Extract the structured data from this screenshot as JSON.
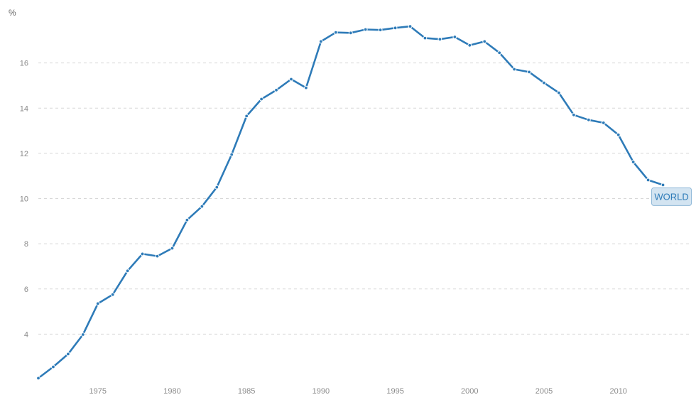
{
  "chart_data": {
    "type": "line",
    "unit": "%",
    "x": [
      1971,
      1972,
      1973,
      1974,
      1975,
      1976,
      1977,
      1978,
      1979,
      1980,
      1981,
      1982,
      1983,
      1984,
      1985,
      1986,
      1987,
      1988,
      1989,
      1990,
      1991,
      1992,
      1993,
      1994,
      1995,
      1996,
      1997,
      1998,
      1999,
      2000,
      2001,
      2002,
      2003,
      2004,
      2005,
      2006,
      2007,
      2008,
      2009,
      2010,
      2011,
      2012,
      2013
    ],
    "series": [
      {
        "name": "WORLD",
        "color": "#2e7bb8",
        "values": [
          2.05,
          2.55,
          3.12,
          3.98,
          5.35,
          5.75,
          6.8,
          7.55,
          7.45,
          7.8,
          9.05,
          9.65,
          10.5,
          11.95,
          13.65,
          14.4,
          14.8,
          15.28,
          14.9,
          16.95,
          17.35,
          17.33,
          17.48,
          17.46,
          17.55,
          17.62,
          17.1,
          17.05,
          17.15,
          16.78,
          16.95,
          16.45,
          15.72,
          15.6,
          15.12,
          14.68,
          13.7,
          13.48,
          13.35,
          12.82,
          11.62,
          10.82,
          10.6
        ]
      }
    ],
    "x_ticks": [
      1975,
      1980,
      1985,
      1990,
      1995,
      2000,
      2005,
      2010
    ],
    "y_ticks": [
      4,
      6,
      8,
      10,
      12,
      14,
      16
    ],
    "xlim": [
      1971,
      2013.5
    ],
    "ylim": [
      2,
      18
    ],
    "grid": "horizontal dashed",
    "series_label_placement": "end of line"
  }
}
